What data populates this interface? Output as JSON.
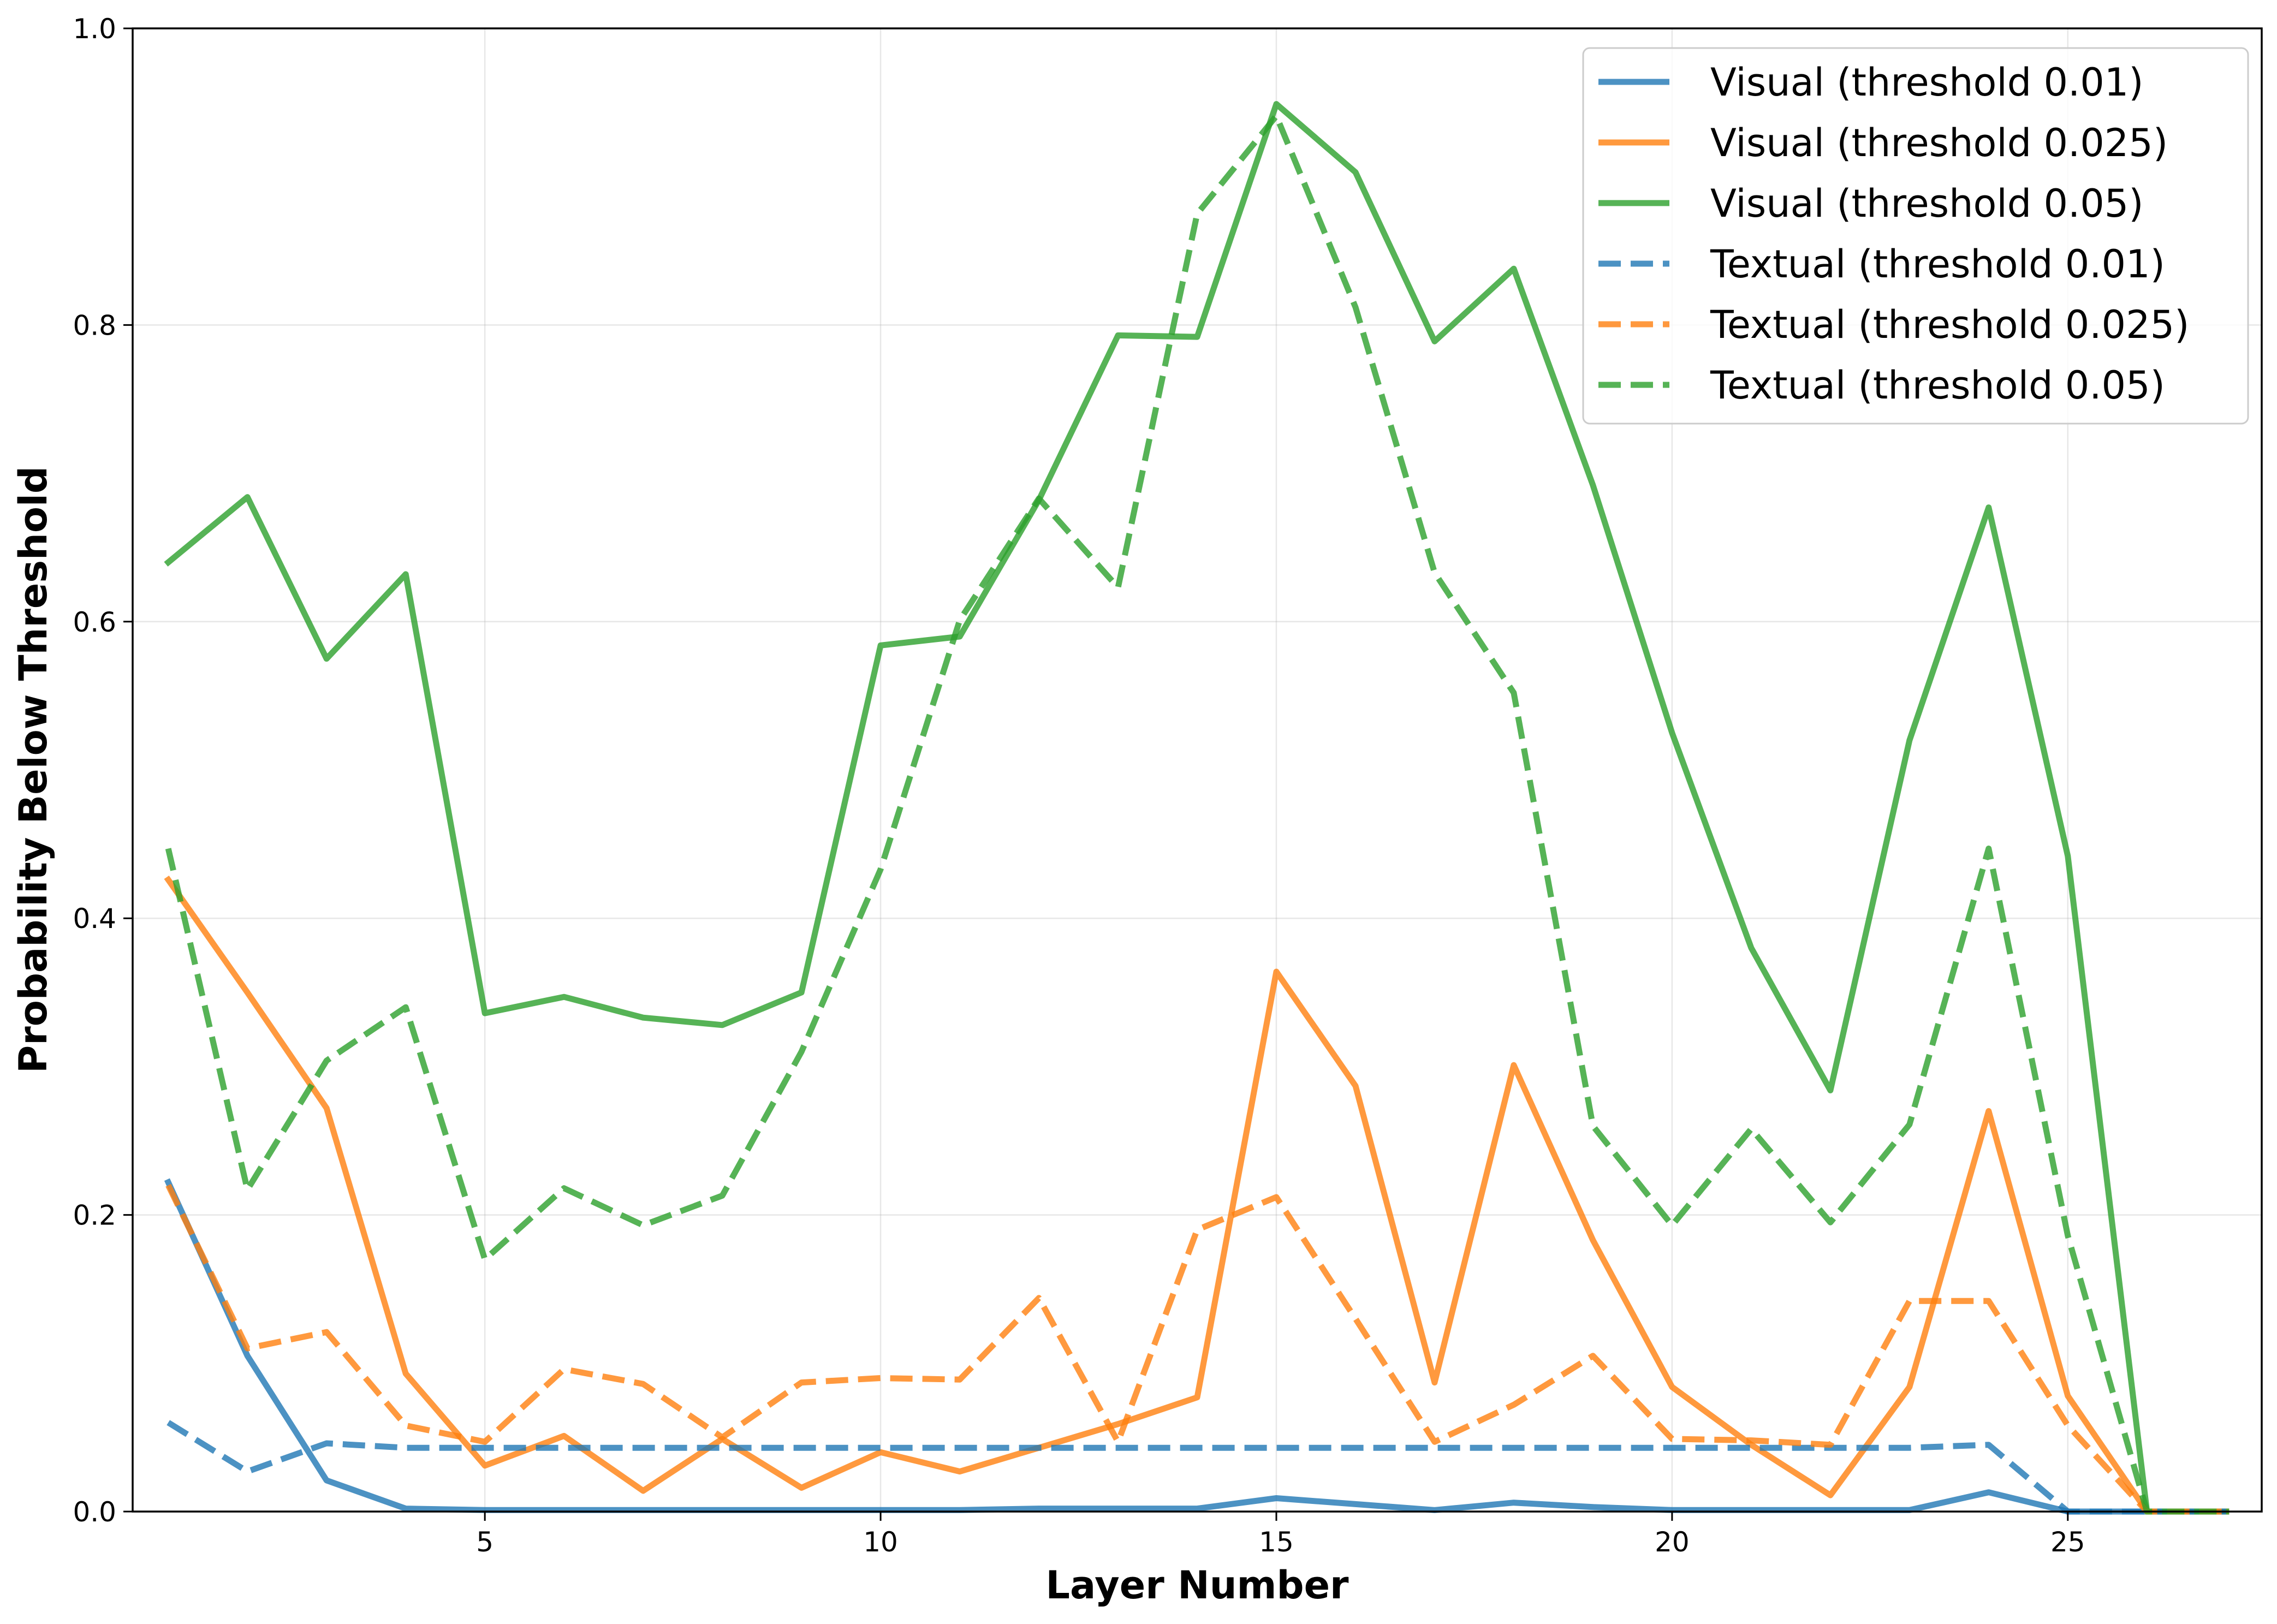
{
  "chart_data": {
    "type": "line",
    "xlabel": "Layer Number",
    "ylabel": "Probability Below Threshold",
    "xlim": [
      0.55,
      27.45
    ],
    "ylim": [
      0.0,
      1.0
    ],
    "xticks": [
      5,
      10,
      15,
      20,
      25
    ],
    "yticks": [
      0.0,
      0.2,
      0.4,
      0.6,
      0.8,
      1.0
    ],
    "grid": true,
    "legend_position": "top-right",
    "x": [
      1,
      2,
      3,
      4,
      5,
      6,
      7,
      8,
      9,
      10,
      11,
      12,
      13,
      14,
      15,
      16,
      17,
      18,
      19,
      20,
      21,
      22,
      23,
      24,
      25,
      26,
      27
    ],
    "series": [
      {
        "name": "Visual (threshold 0.01)",
        "color": "#1f77b4",
        "style": "solid",
        "values": [
          0.222,
          0.105,
          0.021,
          0.002,
          0.001,
          0.001,
          0.001,
          0.001,
          0.001,
          0.001,
          0.001,
          0.002,
          0.002,
          0.002,
          0.009,
          0.005,
          0.001,
          0.006,
          0.003,
          0.001,
          0.001,
          0.001,
          0.001,
          0.013,
          0.0,
          0.0,
          0.0
        ]
      },
      {
        "name": "Visual (threshold 0.025)",
        "color": "#ff7f0e",
        "style": "solid",
        "values": [
          0.426,
          0.35,
          0.272,
          0.093,
          0.031,
          0.051,
          0.014,
          0.049,
          0.016,
          0.04,
          0.027,
          0.043,
          0.059,
          0.077,
          0.364,
          0.287,
          0.087,
          0.301,
          0.183,
          0.084,
          0.045,
          0.011,
          0.084,
          0.27,
          0.078,
          0.0,
          0.0
        ]
      },
      {
        "name": "Visual (threshold 0.05)",
        "color": "#2ca02c",
        "style": "solid",
        "values": [
          0.64,
          0.684,
          0.575,
          0.632,
          0.336,
          0.347,
          0.333,
          0.328,
          0.35,
          0.584,
          0.59,
          0.682,
          0.793,
          0.792,
          0.949,
          0.903,
          0.789,
          0.838,
          0.692,
          0.525,
          0.38,
          0.284,
          0.52,
          0.677,
          0.442,
          0.0,
          0.0
        ]
      },
      {
        "name": "Textual (threshold 0.01)",
        "color": "#1f77b4",
        "style": "dashed",
        "values": [
          0.06,
          0.027,
          0.046,
          0.043,
          0.043,
          0.043,
          0.043,
          0.043,
          0.043,
          0.043,
          0.043,
          0.043,
          0.043,
          0.043,
          0.043,
          0.043,
          0.043,
          0.043,
          0.043,
          0.043,
          0.043,
          0.043,
          0.043,
          0.045,
          0.0,
          0.0,
          0.0
        ]
      },
      {
        "name": "Textual (threshold 0.025)",
        "color": "#ff7f0e",
        "style": "dashed",
        "values": [
          0.22,
          0.11,
          0.121,
          0.058,
          0.047,
          0.096,
          0.086,
          0.05,
          0.087,
          0.09,
          0.089,
          0.144,
          0.047,
          0.19,
          0.212,
          0.13,
          0.047,
          0.072,
          0.105,
          0.049,
          0.048,
          0.045,
          0.142,
          0.142,
          0.058,
          0.0,
          0.0
        ]
      },
      {
        "name": "Textual (threshold 0.05)",
        "color": "#2ca02c",
        "style": "dashed",
        "values": [
          0.447,
          0.217,
          0.304,
          0.34,
          0.17,
          0.218,
          0.193,
          0.213,
          0.31,
          0.433,
          0.601,
          0.683,
          0.623,
          0.875,
          0.941,
          0.812,
          0.633,
          0.552,
          0.26,
          0.193,
          0.258,
          0.195,
          0.261,
          0.447,
          0.186,
          0.0,
          0.0
        ]
      }
    ]
  }
}
